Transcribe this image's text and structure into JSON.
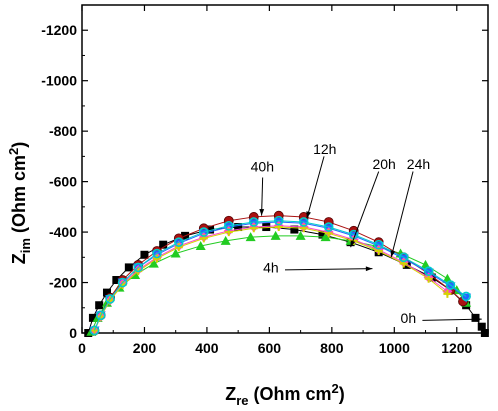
{
  "chart_data": {
    "type": "scatter",
    "title": "",
    "xlabel": {
      "main": "Z",
      "sub": "re",
      "units": " (Ohm cm",
      "sup": "2",
      "close": ")"
    },
    "ylabel": {
      "main": "Z",
      "sub": "im",
      "units": " (Ohm cm",
      "sup": "2",
      "close": ")"
    },
    "xlim": [
      0,
      1300
    ],
    "ylim": [
      0,
      -1300
    ],
    "x_ticks": [
      0,
      200,
      400,
      600,
      800,
      1000,
      1200
    ],
    "y_ticks": [
      0,
      -200,
      -400,
      -600,
      -800,
      -1000,
      -1200
    ],
    "grid": false,
    "legend": "none",
    "series": [
      {
        "name": "0h",
        "marker": "square",
        "color": "#000000",
        "x": [
          20,
          35,
          55,
          80,
          110,
          150,
          200,
          260,
          330,
          410,
          500,
          590,
          680,
          770,
          860,
          950,
          1040,
          1120,
          1180,
          1230,
          1260,
          1280,
          1290
        ],
        "y": [
          0,
          -60,
          -110,
          -160,
          -210,
          -260,
          -310,
          -350,
          -385,
          -410,
          -420,
          -420,
          -410,
          -390,
          -360,
          -320,
          -270,
          -220,
          -170,
          -110,
          -60,
          -25,
          0
        ]
      },
      {
        "name": "4h",
        "marker": "triangle-up",
        "color": "#22cc22",
        "x": [
          30,
          50,
          80,
          120,
          170,
          230,
          300,
          380,
          460,
          540,
          620,
          700,
          780,
          860,
          940,
          1020,
          1100,
          1170,
          1200,
          1230
        ],
        "y": [
          -5,
          -60,
          -120,
          -180,
          -230,
          -275,
          -315,
          -345,
          -365,
          -380,
          -385,
          -385,
          -380,
          -365,
          -345,
          -315,
          -270,
          -215,
          -170,
          -120
        ]
      },
      {
        "name": "12h",
        "marker": "circle",
        "color": "#aa1111",
        "x": [
          40,
          60,
          90,
          130,
          180,
          240,
          310,
          390,
          470,
          550,
          630,
          710,
          790,
          870,
          950,
          1030,
          1110,
          1180,
          1220
        ],
        "y": [
          -10,
          -70,
          -140,
          -210,
          -270,
          -325,
          -375,
          -415,
          -445,
          -460,
          -465,
          -460,
          -440,
          -405,
          -360,
          -300,
          -235,
          -170,
          -125
        ]
      },
      {
        "name": "20h",
        "marker": "triangle-down",
        "color": "#2266ff",
        "x": [
          40,
          60,
          90,
          130,
          180,
          240,
          310,
          390,
          470,
          550,
          630,
          710,
          790,
          870,
          950,
          1030,
          1110,
          1180,
          1230
        ],
        "y": [
          -10,
          -70,
          -135,
          -200,
          -260,
          -310,
          -355,
          -395,
          -420,
          -435,
          -440,
          -435,
          -415,
          -385,
          -345,
          -295,
          -240,
          -185,
          -140
        ]
      },
      {
        "name": "24h",
        "marker": "diamond",
        "color": "#ff44cc",
        "x": [
          40,
          60,
          90,
          130,
          180,
          240,
          310,
          390,
          470,
          550,
          630,
          710,
          790,
          870,
          950,
          1030,
          1110,
          1170
        ],
        "y": [
          -10,
          -65,
          -130,
          -195,
          -250,
          -300,
          -345,
          -380,
          -405,
          -420,
          -425,
          -420,
          -400,
          -370,
          -330,
          -280,
          -220,
          -165
        ]
      },
      {
        "name": "",
        "marker": "cross",
        "color": "#d4d400",
        "x": [
          40,
          60,
          90,
          130,
          180,
          240,
          310,
          390,
          470,
          550,
          630,
          710,
          790,
          870,
          950,
          1030,
          1110,
          1170
        ],
        "y": [
          -10,
          -65,
          -130,
          -190,
          -245,
          -295,
          -340,
          -375,
          -400,
          -415,
          -420,
          -415,
          -395,
          -365,
          -325,
          -275,
          -215,
          -155
        ]
      },
      {
        "name": "",
        "marker": "circle-open",
        "color": "#00cccc",
        "x": [
          40,
          60,
          90,
          130,
          180,
          240,
          310,
          390,
          470,
          550,
          630,
          710,
          790,
          870,
          950,
          1030,
          1110,
          1180,
          1230
        ],
        "y": [
          -10,
          -70,
          -135,
          -200,
          -260,
          -315,
          -360,
          -400,
          -425,
          -440,
          -445,
          -440,
          -420,
          -390,
          -350,
          -300,
          -245,
          -190,
          -145
        ]
      }
    ],
    "annotations": [
      {
        "text": "40h",
        "x": 540,
        "y": -640,
        "arrow_to": [
          575,
          -465
        ]
      },
      {
        "text": "12h",
        "x": 740,
        "y": -710,
        "arrow_from": [
          775,
          -700
        ],
        "arrow_to": [
          720,
          -455
        ]
      },
      {
        "text": "20h",
        "x": 930,
        "y": -650,
        "arrow_from": [
          950,
          -640
        ],
        "arrow_to": [
          860,
          -340
        ]
      },
      {
        "text": "24h",
        "x": 1040,
        "y": -650,
        "arrow_from": [
          1060,
          -640
        ],
        "arrow_to": [
          990,
          -300
        ]
      },
      {
        "text": "4h",
        "x": 580,
        "y": -240,
        "arrow_from": [
          650,
          -250
        ],
        "arrow_to": [
          930,
          -255
        ]
      },
      {
        "text": "0h",
        "x": 1020,
        "y": -40,
        "arrow_from": [
          1090,
          -50
        ],
        "arrow_to": [
          1280,
          -55
        ]
      }
    ]
  }
}
